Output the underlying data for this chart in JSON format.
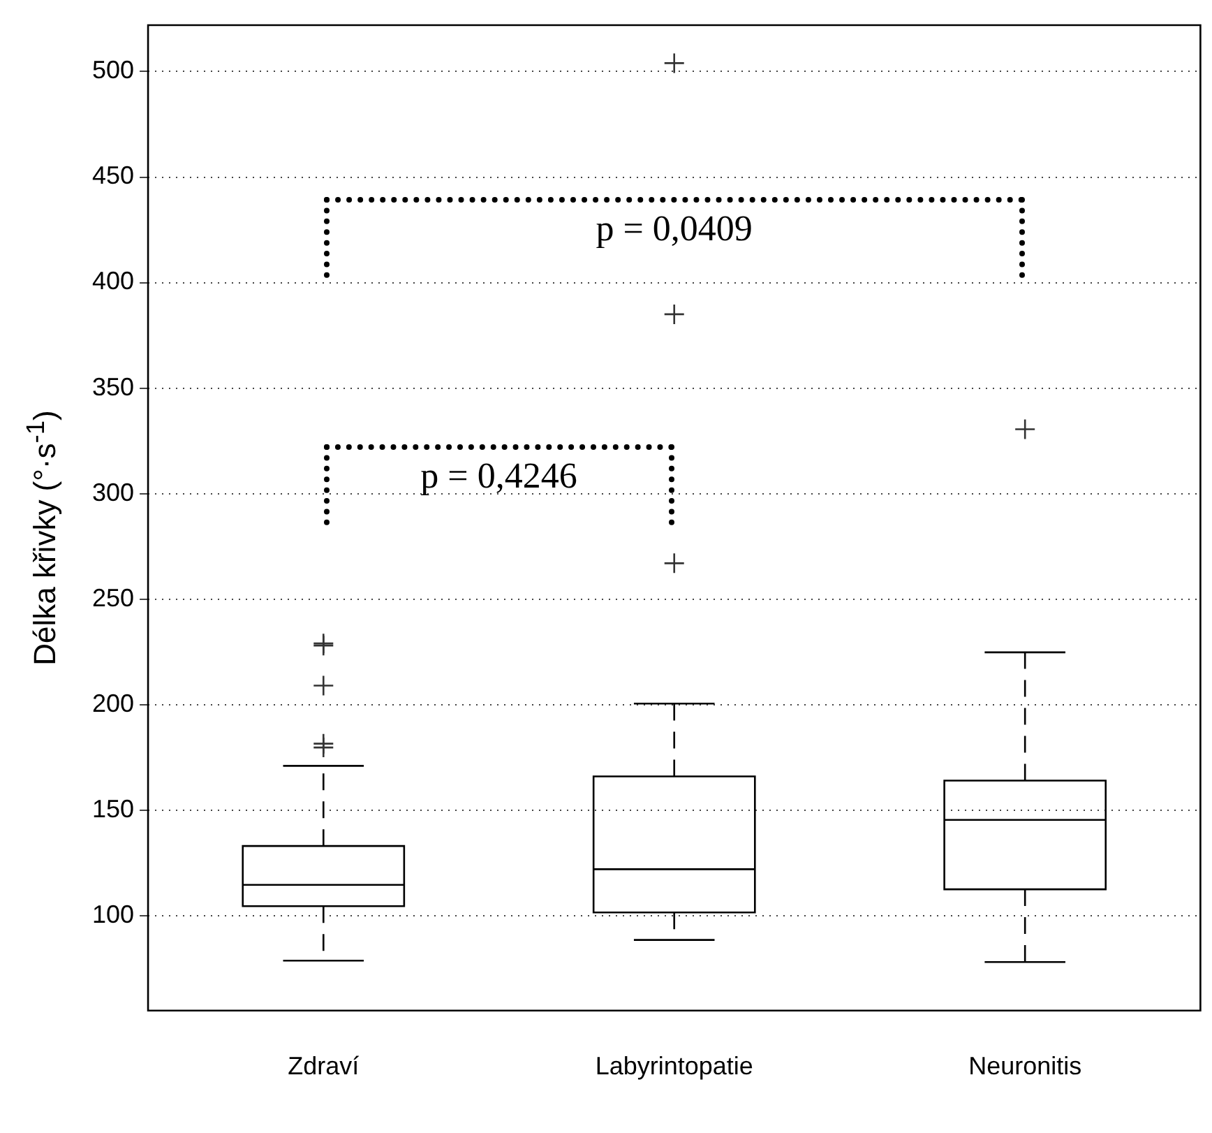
{
  "chart_data": {
    "type": "box",
    "ylabel": "Délka křivky (°·s$^{-1}$)",
    "categories": [
      "Zdraví",
      "Labyrintopatie",
      "Neuronitis"
    ],
    "boxes": [
      {
        "low": 78.7,
        "q1": 104.5,
        "median": 114.6,
        "q3": 133,
        "high": 171,
        "outliers": [
          229,
          228,
          209,
          181.5,
          179.7
        ]
      },
      {
        "low": 88.5,
        "q1": 101.5,
        "median": 122,
        "q3": 166,
        "high": 200.5,
        "outliers": [
          267,
          385,
          504
        ]
      },
      {
        "low": 78,
        "q1": 112.5,
        "median": 145.4,
        "q3": 164,
        "high": 224.8,
        "outliers": [
          330.5
        ]
      }
    ],
    "ylim": [
      55,
      522
    ],
    "yticks": [
      100,
      150,
      200,
      250,
      300,
      350,
      400,
      450,
      500
    ],
    "grid": "y",
    "marker": "cross",
    "annotations": [
      "p = 0,4246",
      "p = 0,0409"
    ]
  }
}
